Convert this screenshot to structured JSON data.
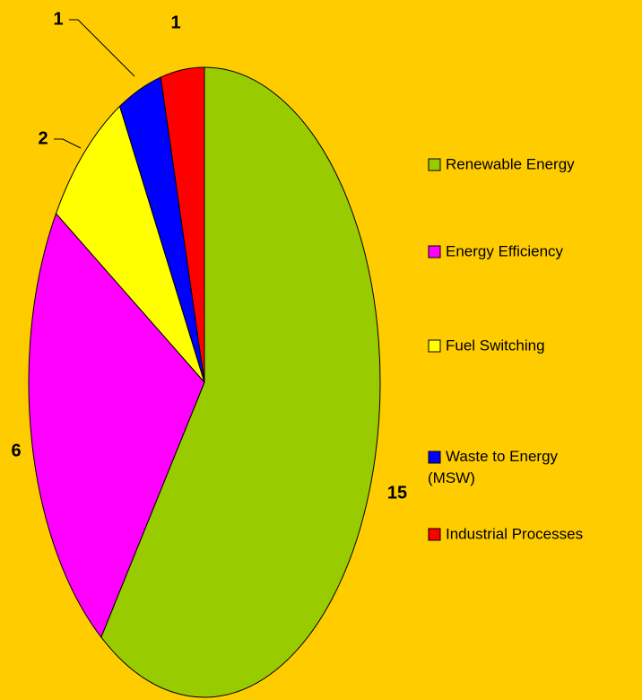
{
  "chart_data": {
    "type": "pie",
    "categories": [
      "Renewable Energy",
      "Energy Efficiency",
      "Fuel Switching",
      "Waste to Energy (MSW)",
      "Industrial Processes"
    ],
    "values": [
      15,
      6,
      2,
      1,
      1
    ],
    "colors": [
      "#99cc00",
      "#ff00ff",
      "#ffff00",
      "#0000ff",
      "#ff0000"
    ],
    "legend": "right"
  }
}
